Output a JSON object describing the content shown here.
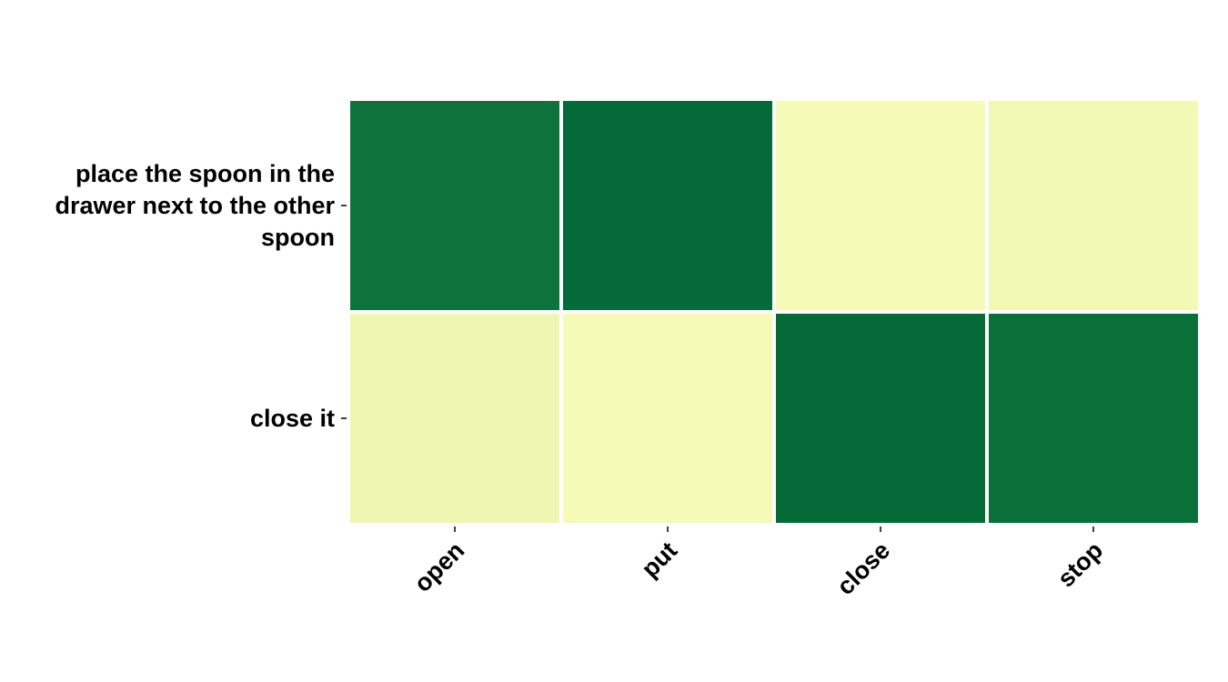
{
  "chart_data": {
    "type": "heatmap",
    "title": "",
    "xlabel": "",
    "ylabel": "",
    "x_categories": [
      "open",
      "put",
      "close",
      "stop"
    ],
    "y_categories": [
      [
        "place the spoon in the",
        "drawer next to the other",
        "spoon"
      ],
      [
        "close it"
      ]
    ],
    "values": [
      [
        0.9,
        0.97,
        0.02,
        0.05
      ],
      [
        0.08,
        0.02,
        0.97,
        0.93
      ]
    ],
    "colorscale": [
      "#f7fbb9",
      "#eef8b3",
      "#0b703b",
      "#026838"
    ],
    "colorbar": false,
    "grid": false
  }
}
